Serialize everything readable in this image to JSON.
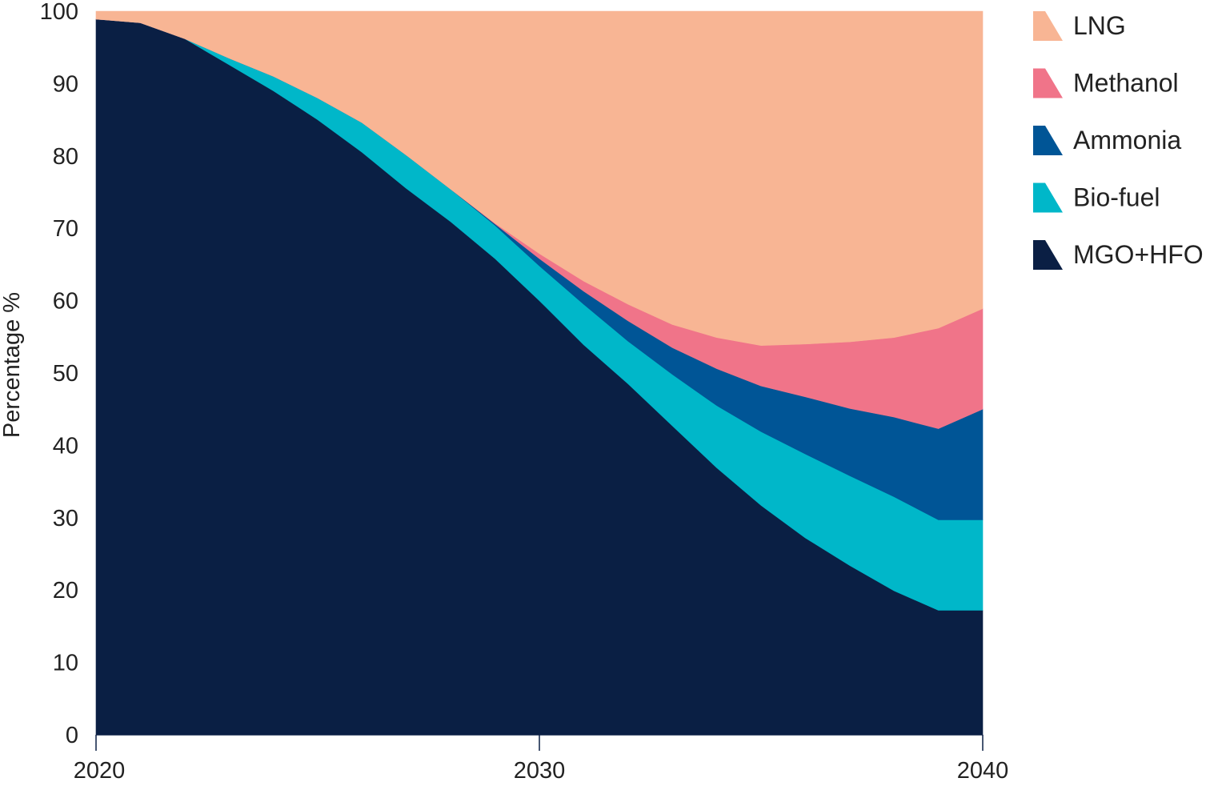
{
  "chart_data": {
    "type": "area",
    "stacked": true,
    "title": "",
    "xlabel": "",
    "ylabel": "Percentage %",
    "xlim": [
      2020,
      2040
    ],
    "ylim": [
      0,
      100
    ],
    "x_ticks": [
      2020,
      2030,
      2040
    ],
    "y_ticks": [
      0,
      10,
      20,
      30,
      40,
      50,
      60,
      70,
      80,
      90,
      100
    ],
    "grid": false,
    "legend_position": "right",
    "x": [
      2020,
      2021,
      2022,
      2023,
      2024,
      2025,
      2026,
      2027,
      2028,
      2029,
      2030,
      2031,
      2032,
      2033,
      2034,
      2035,
      2036,
      2037,
      2038,
      2039,
      2040
    ],
    "series": [
      {
        "name": "MGO+HFO",
        "color": "#0a1f44",
        "values": [
          98.9,
          98.4,
          96.2,
          92.6,
          89.0,
          85.0,
          80.5,
          75.5,
          70.9,
          65.8,
          60.0,
          53.9,
          48.5,
          42.7,
          36.9,
          31.7,
          27.2,
          23.4,
          19.9,
          17.2,
          17.2
        ]
      },
      {
        "name": "Bio-fuel",
        "color": "#00b7c9",
        "values": [
          0,
          0,
          0,
          0.9,
          2.0,
          3.0,
          4.1,
          4.6,
          4.5,
          4.6,
          4.8,
          5.6,
          5.9,
          7.1,
          8.6,
          10.2,
          11.6,
          12.4,
          13.0,
          12.5,
          12.5
        ]
      },
      {
        "name": "Ammonia",
        "color": "#005596",
        "values": [
          0,
          0,
          0,
          0,
          0,
          0,
          0,
          0,
          0,
          0.2,
          1.0,
          1.8,
          2.8,
          3.7,
          5.1,
          6.3,
          7.9,
          9.3,
          11.0,
          12.6,
          15.3
        ]
      },
      {
        "name": "Methanol",
        "color": "#f07489",
        "values": [
          0,
          0,
          0,
          0,
          0,
          0,
          0,
          0,
          0,
          0.1,
          0.7,
          1.4,
          2.3,
          3.2,
          4.3,
          5.6,
          7.3,
          9.2,
          11.0,
          13.9,
          13.9
        ]
      },
      {
        "name": "LNG",
        "color": "#f8b594",
        "values": [
          1.1,
          1.6,
          3.8,
          6.5,
          9.0,
          12.0,
          15.4,
          19.9,
          24.6,
          29.3,
          33.5,
          37.3,
          40.5,
          43.3,
          45.1,
          46.2,
          46.0,
          45.7,
          45.1,
          43.8,
          41.1
        ]
      }
    ],
    "legend_order": [
      "LNG",
      "Methanol",
      "Ammonia",
      "Bio-fuel",
      "MGO+HFO"
    ]
  }
}
